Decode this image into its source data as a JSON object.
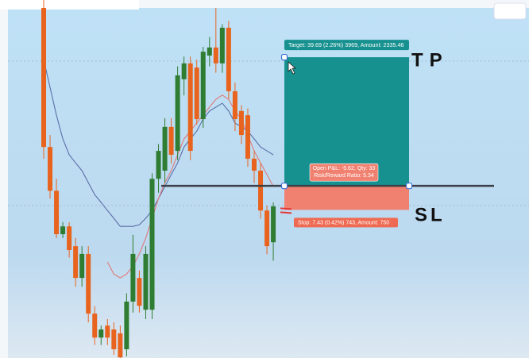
{
  "chart_data": {
    "type": "candlestick",
    "ylim": [
      1704,
      1812
    ],
    "up_color": "#2e7d32",
    "down_color": "#e8641e",
    "ohlc": [
      [
        1812.0,
        1814.5,
        1765.5,
        1769.1
      ],
      [
        1769.1,
        1772.8,
        1753.2,
        1755.6
      ],
      [
        1755.6,
        1759.3,
        1741.0,
        1742.2
      ],
      [
        1742.2,
        1745.9,
        1741.0,
        1744.6
      ],
      [
        1744.6,
        1745.9,
        1735.0,
        1737.3
      ],
      [
        1738.5,
        1741.0,
        1726.0,
        1728.7
      ],
      [
        1728.7,
        1738.5,
        1726.0,
        1736.1
      ],
      [
        1736.1,
        1738.5,
        1715.0,
        1717.7
      ],
      [
        1717.7,
        1720.0,
        1708.0,
        1710.3
      ],
      [
        1710.3,
        1714.0,
        1708.0,
        1712.8
      ],
      [
        1714.0,
        1716.0,
        1708.0,
        1710.3
      ],
      [
        1712.8,
        1715.0,
        1705.0,
        1706.7
      ],
      [
        1711.6,
        1714.0,
        1704.0,
        1704.2
      ],
      [
        1706.7,
        1724.0,
        1704.5,
        1721.4
      ],
      [
        1721.4,
        1742.0,
        1718.0,
        1736.1
      ],
      [
        1728.7,
        1731.0,
        1718.0,
        1720.1
      ],
      [
        1718.9,
        1738.5,
        1716.0,
        1736.1
      ],
      [
        1718.9,
        1761.0,
        1716.0,
        1759.3
      ],
      [
        1759.3,
        1770.0,
        1755.0,
        1767.9
      ],
      [
        1761.8,
        1778.0,
        1758.0,
        1775.3
      ],
      [
        1775.3,
        1778.0,
        1764.0,
        1766.7
      ],
      [
        1767.9,
        1794.0,
        1765.0,
        1791.2
      ],
      [
        1790.0,
        1797.0,
        1785.0,
        1794.9
      ],
      [
        1794.9,
        1797.0,
        1765.0,
        1767.9
      ],
      [
        1793.6,
        1796.0,
        1776.0,
        1777.7
      ],
      [
        1777.7,
        1800.0,
        1775.0,
        1798.5
      ],
      [
        1797.3,
        1803.0,
        1794.0,
        1799.8
      ],
      [
        1799.8,
        1812.0,
        1792.0,
        1794.9
      ],
      [
        1794.9,
        1807.0,
        1792.0,
        1805.9
      ],
      [
        1805.9,
        1808.0,
        1784.0,
        1786.3
      ],
      [
        1786.3,
        1789.0,
        1774.0,
        1777.7
      ],
      [
        1780.2,
        1782.0,
        1770.0,
        1772.8
      ],
      [
        1778.9,
        1781.0,
        1763.0,
        1765.5
      ],
      [
        1765.5,
        1768.0,
        1758.0,
        1761.8
      ],
      [
        1761.8,
        1764.0,
        1747.0,
        1749.5
      ],
      [
        1749.5,
        1751.0,
        1736.0,
        1738.5
      ],
      [
        1739.7,
        1752.0,
        1734.0,
        1750.8
      ]
    ],
    "series": [
      {
        "color": "#5a6fa8",
        "values": [
          1796.1,
          1787.5,
          1778.9,
          1771.6,
          1766.7,
          1764.2,
          1761.8,
          1758.1,
          1754.4,
          1752.0,
          1749.5,
          1747.1,
          1744.6,
          1744.6,
          1744.6,
          1745.1,
          1747.1,
          1749.5,
          1753.2,
          1756.9,
          1760.6,
          1764.2,
          1769.1,
          1771.6,
          1774.0,
          1777.7,
          1780.2,
          1781.4,
          1782.6,
          1780.2,
          1776.5,
          1775.3,
          1774.0,
          1771.6,
          1769.1,
          1767.9,
          1766.7
        ]
      },
      {
        "color": "#e07a7a",
        "values": [
          null,
          null,
          null,
          null,
          null,
          null,
          null,
          null,
          null,
          null,
          1733.6,
          1729.9,
          1728.7,
          1729.9,
          1732.4,
          1736.1,
          1741.0,
          1747.1,
          1753.2,
          1758.1,
          1761.8,
          1766.7,
          1771.6,
          1774.0,
          1776.5,
          1778.9,
          1781.4,
          1783.8,
          1785.1,
          1783.8,
          1780.2,
          1777.7,
          1772.8,
          1767.9,
          1764.2,
          1760.6,
          1756.9
        ]
      }
    ],
    "position": {
      "entry": 1757.1,
      "target": 1796.8,
      "stop": 1749.7,
      "target_color": "#16918f",
      "stop_color": "#f08070",
      "target_label": "Target: 39.69 (2.26%) 3969, Amount: 2335.46",
      "pnl_label": "Open P&L: -5.62, Qty: 33",
      "ratio_label": "Risk/Reward Ratio: 5.34",
      "stop_label": "Stop: 7.43 (0.42%) 743, Amount: 750"
    },
    "annotations": [
      "TP",
      "SL"
    ]
  }
}
